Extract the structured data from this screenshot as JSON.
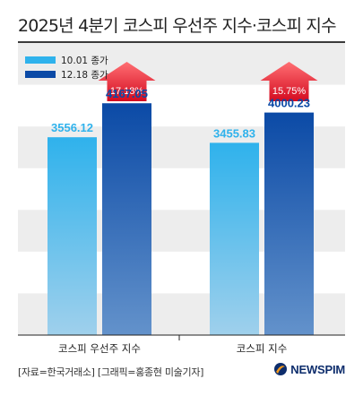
{
  "title": "2025년 4분기 코스피 우선주 지수·코스피 지수",
  "source": "[자료=한국거래소] [그래픽=홍종현 미술기자]",
  "logo_text": "NEWSPIM",
  "colors": {
    "series1_top": "#2fb2ec",
    "series1_bottom": "#9fd0ec",
    "series2_top": "#0b4aa6",
    "series2_bottom": "#6392cb",
    "series1_label": "#2fb2ec",
    "series2_label": "#0b4aa6",
    "arrow_top": "#ff6f73",
    "arrow_bottom": "#d40b20",
    "band": "#ededed",
    "logo_blue": "#0d2d6c",
    "logo_orange": "#f39a1e"
  },
  "chart_data": {
    "type": "bar",
    "title": "2025년 4분기 코스피 우선주 지수·코스피 지수",
    "categories": [
      "코스피 우선주 지수",
      "코스피 지수"
    ],
    "series": [
      {
        "name": "10.01 종가",
        "values": [
          3556.12,
          3455.83
        ],
        "labels": [
          "3556.12",
          "3455.83"
        ]
      },
      {
        "name": "12.18 종가",
        "values": [
          4167.05,
          4000.23
        ],
        "labels": [
          "4167.05",
          "4000.23"
        ]
      }
    ],
    "changes": [
      "17.18%",
      "15.75%"
    ],
    "ylim": [
      0,
      5250
    ],
    "grid": "alternating horizontal bands",
    "legend": "top-left"
  }
}
